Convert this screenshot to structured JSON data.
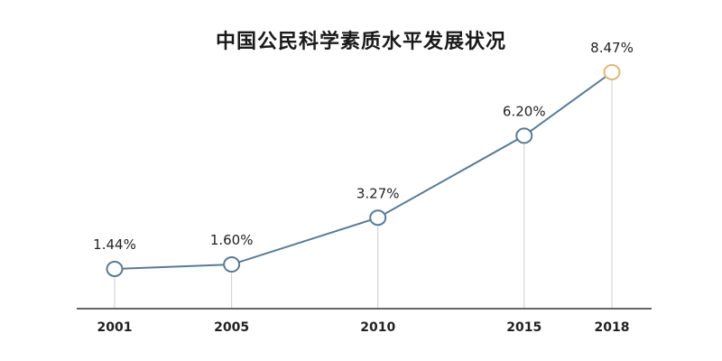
{
  "chart_data": {
    "type": "line",
    "title": "中国公民科学素质水平发展状况",
    "categories": [
      "2001",
      "2005",
      "2010",
      "2015",
      "2018"
    ],
    "series": [
      {
        "values": [
          1.44,
          1.6,
          3.27,
          6.2,
          8.47
        ]
      }
    ],
    "data_labels": [
      "1.44%",
      "1.60%",
      "3.27%",
      "6.20%",
      "8.47%"
    ],
    "xlabel": "",
    "ylabel": "",
    "ylim": [
      0,
      10
    ],
    "grid": false,
    "legend": "none",
    "colors": {
      "line": "#5a7a94",
      "marker": "#5a7a94",
      "highlight_marker": "#e0b878",
      "drop_line": "#cccccc",
      "axis": "#333333"
    }
  }
}
